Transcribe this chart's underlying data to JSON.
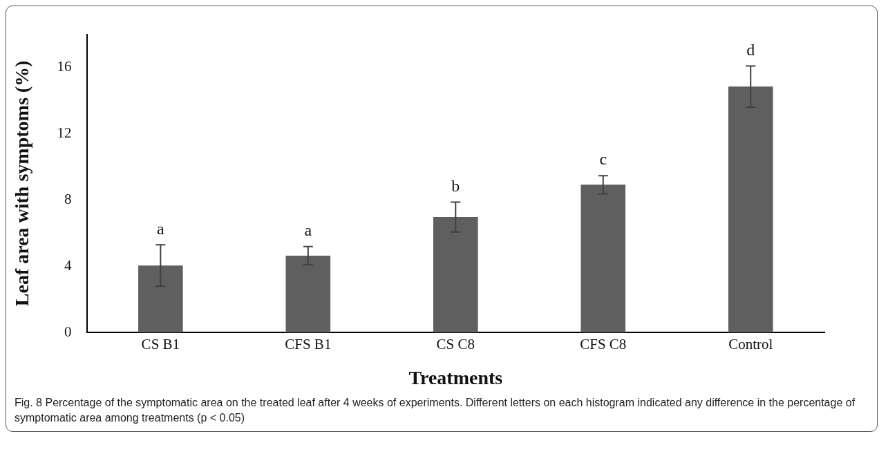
{
  "chart_data": {
    "type": "bar",
    "ylabel": "Leaf area with symptoms (%)",
    "xlabel": "Treatments",
    "categories": [
      "CS B1",
      "CFS B1",
      "CS C8",
      "CFS C8",
      "Control"
    ],
    "values": [
      4.04,
      4.64,
      6.97,
      8.92,
      14.84
    ],
    "errors": [
      1.25,
      0.55,
      0.9,
      0.55,
      1.25
    ],
    "color": "#5f5f5f",
    "ylim": [
      0,
      18
    ],
    "yticks": [
      0,
      4,
      8,
      12,
      16
    ],
    "grid": false,
    "legend": false,
    "value_labels": [
      "a",
      "a",
      "b",
      "c",
      "d"
    ],
    "annotations": [
      "Fig. 8  Percentage of the symptomatic area on the treated leaf after 4 weeks of experiments. Different letters on each histogram indicated any difference in the percentage of symptomatic area among treatments (p < 0.05)"
    ]
  }
}
